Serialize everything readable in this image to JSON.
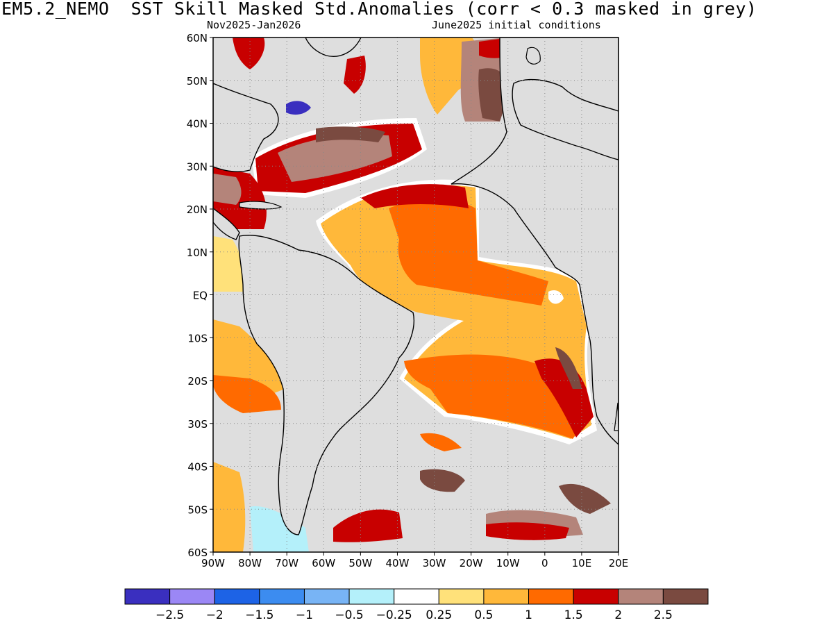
{
  "title": "EM5.2_NEMO  SST Skill Masked Std.Anomalies (corr < 0.3 masked in grey)",
  "subtitle_left": "Nov2025-Jan2026",
  "subtitle_right": "June2025 initial conditions",
  "map": {
    "lon_range": [
      -90,
      20
    ],
    "lat_range": [
      -60,
      60
    ],
    "mask_color": "#dedede",
    "land_color": "#dedede",
    "coast_color": "#000000",
    "x_ticks": [
      {
        "value": -90,
        "label": "90W"
      },
      {
        "value": -80,
        "label": "80W"
      },
      {
        "value": -70,
        "label": "70W"
      },
      {
        "value": -60,
        "label": "60W"
      },
      {
        "value": -50,
        "label": "50W"
      },
      {
        "value": -40,
        "label": "40W"
      },
      {
        "value": -30,
        "label": "30W"
      },
      {
        "value": -20,
        "label": "20W"
      },
      {
        "value": -10,
        "label": "10W"
      },
      {
        "value": 0,
        "label": "0"
      },
      {
        "value": 10,
        "label": "10E"
      },
      {
        "value": 20,
        "label": "20E"
      }
    ],
    "y_ticks": [
      {
        "value": 60,
        "label": "60N"
      },
      {
        "value": 50,
        "label": "50N"
      },
      {
        "value": 40,
        "label": "40N"
      },
      {
        "value": 30,
        "label": "30N"
      },
      {
        "value": 20,
        "label": "20N"
      },
      {
        "value": 10,
        "label": "10N"
      },
      {
        "value": 0,
        "label": "EQ"
      },
      {
        "value": -10,
        "label": "10S"
      },
      {
        "value": -20,
        "label": "20S"
      },
      {
        "value": -30,
        "label": "30S"
      },
      {
        "value": -40,
        "label": "40S"
      },
      {
        "value": -50,
        "label": "50S"
      },
      {
        "value": -60,
        "label": "60S"
      }
    ]
  },
  "colorbar": {
    "colors": [
      "#3a2fbf",
      "#9b87f5",
      "#1d63e6",
      "#3c8cf0",
      "#78b4f5",
      "#b4f0fa",
      "#ffffff",
      "#ffe17a",
      "#ffb83a",
      "#ff6a00",
      "#c80000",
      "#b4847a",
      "#7a4a40"
    ],
    "labels": [
      "-2.5",
      "-2",
      "-1.5",
      "-1",
      "-0.5",
      "-0.25",
      "0.25",
      "0.5",
      "1",
      "1.5",
      "2",
      "2.5"
    ]
  }
}
